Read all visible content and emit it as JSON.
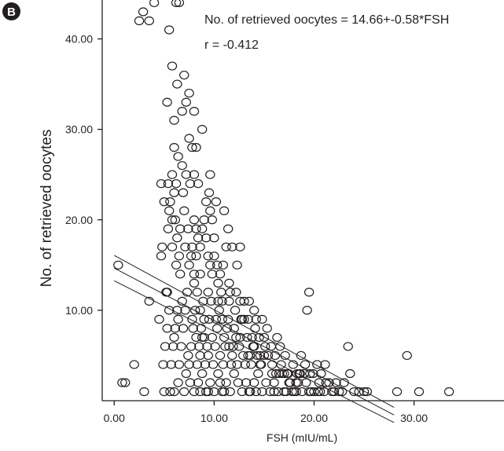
{
  "panel_label": "B",
  "chart_data": {
    "type": "scatter",
    "xlabel": "FSH (mIU/mL)",
    "ylabel": "No. of retrieved oocytes",
    "xlim": [
      -1.2,
      39
    ],
    "ylim": [
      0,
      44.3
    ],
    "x_ticks": [
      "0.00",
      "10.00",
      "20.00",
      "30.00"
    ],
    "y_ticks": [
      "10.00",
      "20.00",
      "30.00",
      "40.00"
    ],
    "annotations": [
      "No. of retrieved oocytes = 14.66+-0.58*FSH",
      "r = -0.412"
    ],
    "regression": {
      "intercept": 14.66,
      "slope": -0.58,
      "r": -0.412
    },
    "points": [
      [
        0.4,
        15
      ],
      [
        0.8,
        2
      ],
      [
        1.1,
        2
      ],
      [
        2,
        4
      ],
      [
        3,
        1
      ],
      [
        3.5,
        11
      ],
      [
        4.5,
        9
      ],
      [
        4.7,
        16
      ],
      [
        4.7,
        24
      ],
      [
        4.8,
        17
      ],
      [
        5,
        1
      ],
      [
        5.2,
        12
      ],
      [
        5.3,
        12
      ],
      [
        5.5,
        21
      ],
      [
        5.6,
        22
      ],
      [
        5.8,
        20
      ],
      [
        6,
        23
      ],
      [
        6.1,
        20
      ],
      [
        6.3,
        18
      ],
      [
        6.5,
        16
      ],
      [
        6.6,
        14
      ],
      [
        6.9,
        23
      ],
      [
        7.1,
        17
      ],
      [
        7.5,
        15
      ],
      [
        7.7,
        16
      ],
      [
        8,
        13
      ],
      [
        8.3,
        12
      ],
      [
        8.6,
        10
      ],
      [
        8.8,
        7
      ],
      [
        9,
        7
      ],
      [
        9.6,
        15
      ],
      [
        10,
        16
      ],
      [
        10.4,
        13
      ],
      [
        10.8,
        9
      ],
      [
        11.5,
        6
      ],
      [
        12,
        8
      ],
      [
        12.6,
        7
      ],
      [
        13,
        9
      ],
      [
        13.6,
        5
      ],
      [
        14,
        6
      ],
      [
        14.6,
        4
      ],
      [
        15,
        5
      ],
      [
        15.8,
        4
      ],
      [
        16.5,
        3
      ],
      [
        17.5,
        2
      ],
      [
        18.5,
        3
      ],
      [
        19.5,
        1
      ],
      [
        20.5,
        2
      ],
      [
        21.5,
        2
      ],
      [
        22.5,
        1
      ],
      [
        24,
        1
      ],
      [
        5.6,
        1
      ],
      [
        6,
        1
      ],
      [
        6.4,
        2
      ],
      [
        7,
        1
      ],
      [
        7.2,
        3
      ],
      [
        7.6,
        2
      ],
      [
        8,
        1
      ],
      [
        8.4,
        2
      ],
      [
        8.8,
        3
      ],
      [
        9.2,
        1
      ],
      [
        9.6,
        2
      ],
      [
        10,
        1
      ],
      [
        10.4,
        3
      ],
      [
        10.8,
        1
      ],
      [
        11.2,
        2
      ],
      [
        11.6,
        1
      ],
      [
        12,
        3
      ],
      [
        12.4,
        2
      ],
      [
        12.8,
        1
      ],
      [
        13.2,
        2
      ],
      [
        13.6,
        1
      ],
      [
        14,
        2
      ],
      [
        14.4,
        3
      ],
      [
        14.8,
        1
      ],
      [
        15.2,
        2
      ],
      [
        15.6,
        1
      ],
      [
        16,
        2
      ],
      [
        16.4,
        1
      ],
      [
        16.8,
        3
      ],
      [
        17.2,
        1
      ],
      [
        17.6,
        2
      ],
      [
        18,
        1
      ],
      [
        18.4,
        2
      ],
      [
        18.8,
        1
      ],
      [
        19.2,
        2
      ],
      [
        19.6,
        3
      ],
      [
        20,
        1
      ],
      [
        20.4,
        1
      ],
      [
        21,
        1
      ],
      [
        21.2,
        2
      ],
      [
        21.8,
        1
      ],
      [
        22.2,
        2
      ],
      [
        22.8,
        1
      ],
      [
        23,
        2
      ],
      [
        24.5,
        1
      ],
      [
        25,
        1
      ],
      [
        4.9,
        4
      ],
      [
        5.1,
        6
      ],
      [
        5.3,
        8
      ],
      [
        5.5,
        10
      ],
      [
        5.7,
        4
      ],
      [
        5.9,
        6
      ],
      [
        6.1,
        8
      ],
      [
        6.3,
        10
      ],
      [
        6.5,
        4
      ],
      [
        6.7,
        6
      ],
      [
        6.9,
        8
      ],
      [
        7.1,
        10
      ],
      [
        7.3,
        12
      ],
      [
        7.5,
        4
      ],
      [
        7.7,
        6
      ],
      [
        7.9,
        8
      ],
      [
        8.1,
        10
      ],
      [
        8.3,
        4
      ],
      [
        8.5,
        6
      ],
      [
        8.7,
        8
      ],
      [
        8.9,
        11
      ],
      [
        9.1,
        4
      ],
      [
        9.3,
        6
      ],
      [
        9.5,
        9
      ],
      [
        9.7,
        11
      ],
      [
        9.9,
        4
      ],
      [
        10.1,
        6
      ],
      [
        10.3,
        8
      ],
      [
        10.5,
        10
      ],
      [
        10.7,
        12
      ],
      [
        10.9,
        4
      ],
      [
        11.1,
        6
      ],
      [
        11.3,
        8
      ],
      [
        11.5,
        11
      ],
      [
        11.7,
        4
      ],
      [
        11.9,
        6
      ],
      [
        12.1,
        10
      ],
      [
        12.3,
        4
      ],
      [
        12.5,
        6
      ],
      [
        12.7,
        9
      ],
      [
        12.9,
        5
      ],
      [
        13.1,
        4
      ],
      [
        13.3,
        7
      ],
      [
        13.5,
        11
      ],
      [
        13.7,
        4
      ],
      [
        13.9,
        6
      ],
      [
        14.1,
        8
      ],
      [
        14.3,
        5
      ],
      [
        14.5,
        7
      ],
      [
        14.7,
        4
      ],
      [
        15.1,
        6
      ],
      [
        15.3,
        8
      ],
      [
        15.7,
        6
      ],
      [
        16.1,
        5
      ],
      [
        16.3,
        7
      ],
      [
        16.7,
        4
      ],
      [
        17.1,
        5
      ],
      [
        17.3,
        3
      ],
      [
        17.9,
        4
      ],
      [
        18.3,
        3
      ],
      [
        18.7,
        5
      ],
      [
        19.1,
        4
      ],
      [
        19.3,
        10
      ],
      [
        19.5,
        12
      ],
      [
        19.9,
        3
      ],
      [
        20.3,
        4
      ],
      [
        20.7,
        3
      ],
      [
        21.1,
        4
      ],
      [
        22,
        1
      ],
      [
        23.4,
        6
      ],
      [
        23.6,
        3
      ],
      [
        6,
        7
      ],
      [
        6.4,
        9
      ],
      [
        6.8,
        11
      ],
      [
        7.4,
        5
      ],
      [
        7.8,
        9
      ],
      [
        8.2,
        7
      ],
      [
        8.6,
        5
      ],
      [
        9,
        9
      ],
      [
        9.4,
        5
      ],
      [
        9.8,
        7
      ],
      [
        10.2,
        9
      ],
      [
        10.6,
        5
      ],
      [
        11,
        7
      ],
      [
        11.4,
        9
      ],
      [
        11.8,
        5
      ],
      [
        12.2,
        7
      ],
      [
        12.6,
        11
      ],
      [
        13,
        11
      ],
      [
        13.4,
        5
      ],
      [
        13.8,
        7
      ],
      [
        14.2,
        9
      ],
      [
        14.6,
        5
      ],
      [
        15,
        7
      ],
      [
        15.4,
        5
      ],
      [
        15.8,
        3
      ],
      [
        16.2,
        3
      ],
      [
        16.6,
        6
      ],
      [
        17,
        3
      ],
      [
        17.4,
        3
      ],
      [
        17.8,
        1
      ],
      [
        18.2,
        2
      ],
      [
        18.6,
        3
      ],
      [
        19,
        3
      ],
      [
        8,
        20
      ],
      [
        8.2,
        19
      ],
      [
        8.4,
        18
      ],
      [
        8.6,
        17
      ],
      [
        8.8,
        19
      ],
      [
        9,
        20
      ],
      [
        9.2,
        18
      ],
      [
        9.4,
        16
      ],
      [
        9.5,
        23
      ],
      [
        9.6,
        25
      ],
      [
        9.8,
        20
      ],
      [
        10,
        18
      ],
      [
        10.3,
        15
      ],
      [
        10.6,
        14
      ],
      [
        10.9,
        15
      ],
      [
        11.2,
        17
      ],
      [
        11.5,
        13
      ],
      [
        11.8,
        17
      ],
      [
        12.3,
        15
      ],
      [
        12.6,
        17
      ],
      [
        5,
        22
      ],
      [
        5.4,
        19
      ],
      [
        5.8,
        17
      ],
      [
        6.2,
        15
      ],
      [
        6.6,
        19
      ],
      [
        7,
        21
      ],
      [
        7.4,
        19
      ],
      [
        7.8,
        17
      ],
      [
        8,
        14
      ],
      [
        8.2,
        16
      ],
      [
        8.6,
        14
      ],
      [
        9.4,
        12
      ],
      [
        9.8,
        14
      ],
      [
        10.4,
        11
      ],
      [
        10.8,
        11
      ],
      [
        11.6,
        12
      ],
      [
        12.2,
        12
      ],
      [
        12.8,
        9
      ],
      [
        13.4,
        9
      ],
      [
        14,
        10
      ],
      [
        14.8,
        9
      ],
      [
        2.5,
        42
      ],
      [
        2.9,
        43
      ],
      [
        3.5,
        42
      ],
      [
        4,
        44
      ],
      [
        5.5,
        41
      ],
      [
        6.2,
        44
      ],
      [
        6.5,
        44
      ],
      [
        5.8,
        37
      ],
      [
        6.3,
        35
      ],
      [
        7,
        36
      ],
      [
        7.5,
        34
      ],
      [
        5.3,
        33
      ],
      [
        6,
        31
      ],
      [
        6.8,
        32
      ],
      [
        7.2,
        33
      ],
      [
        8,
        32
      ],
      [
        7.5,
        29
      ],
      [
        7.8,
        28
      ],
      [
        8.2,
        28
      ],
      [
        8.8,
        30
      ],
      [
        6,
        28
      ],
      [
        6.4,
        27
      ],
      [
        6.8,
        26
      ],
      [
        7.2,
        25
      ],
      [
        7.6,
        24
      ],
      [
        8,
        25
      ],
      [
        8.4,
        24
      ],
      [
        9.2,
        22
      ],
      [
        9.6,
        21
      ],
      [
        10.2,
        22
      ],
      [
        11,
        21
      ],
      [
        11.4,
        19
      ],
      [
        5.4,
        24
      ],
      [
        5.8,
        25
      ],
      [
        6.2,
        24
      ],
      [
        8.6,
        1
      ],
      [
        9.4,
        1
      ],
      [
        10.6,
        2
      ],
      [
        11,
        1
      ],
      [
        13.5,
        1
      ],
      [
        14.2,
        1
      ],
      [
        16,
        1
      ],
      [
        17,
        1
      ],
      [
        18.2,
        1
      ],
      [
        19.7,
        1
      ],
      [
        20.6,
        1
      ],
      [
        25.3,
        1
      ],
      [
        28.3,
        1
      ],
      [
        29.3,
        5
      ],
      [
        30.5,
        1
      ],
      [
        33.5,
        1
      ]
    ]
  }
}
